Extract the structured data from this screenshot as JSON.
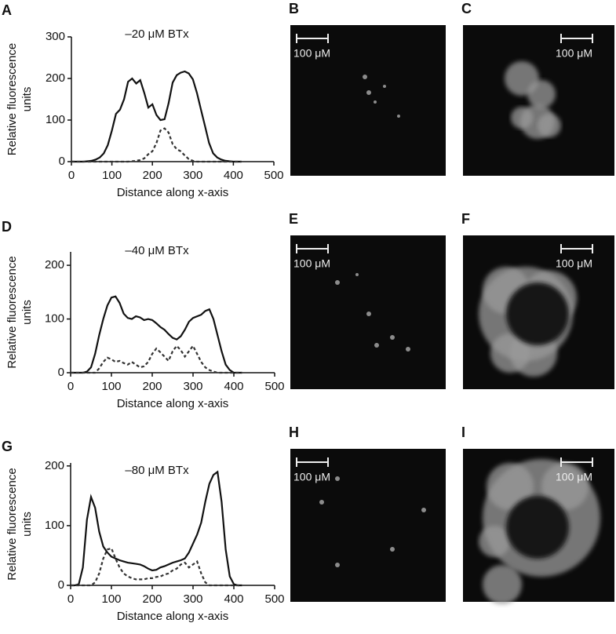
{
  "chart_data": [
    {
      "type": "line",
      "panel": "A",
      "title": "–20 μM BTx",
      "xlabel": "Distance along x-axis",
      "ylabel": [
        "Relative fluorescence",
        "units"
      ],
      "x": [
        0,
        10,
        20,
        30,
        40,
        50,
        60,
        70,
        80,
        90,
        100,
        110,
        120,
        130,
        140,
        150,
        160,
        170,
        180,
        190,
        200,
        210,
        220,
        230,
        240,
        250,
        260,
        270,
        280,
        290,
        300,
        310,
        320,
        330,
        340,
        350,
        360,
        370,
        380,
        390,
        400,
        410,
        420
      ],
      "series": [
        {
          "color": "#111",
          "style": "solid",
          "values": [
            0,
            0,
            0,
            0,
            1,
            2,
            5,
            10,
            20,
            40,
            75,
            115,
            125,
            150,
            192,
            200,
            188,
            196,
            165,
            130,
            138,
            112,
            100,
            102,
            140,
            190,
            208,
            214,
            217,
            212,
            198,
            165,
            125,
            85,
            45,
            20,
            10,
            5,
            2,
            1,
            0,
            0,
            0
          ]
        },
        {
          "color": "#333",
          "style": "dashed",
          "values": [
            0,
            0,
            0,
            0,
            0,
            0,
            0,
            0,
            0,
            0,
            0,
            0,
            0,
            0,
            0,
            1,
            2,
            4,
            8,
            18,
            25,
            45,
            75,
            80,
            70,
            42,
            30,
            25,
            15,
            6,
            2,
            0,
            0,
            0,
            0,
            0,
            0,
            0,
            0,
            0,
            0,
            0,
            0
          ]
        }
      ],
      "xlim": [
        0,
        500
      ],
      "xticks": [
        0,
        100,
        200,
        300,
        400,
        500
      ],
      "ylim": [
        0,
        300
      ],
      "yticks": [
        0,
        100,
        200,
        300
      ]
    },
    {
      "type": "line",
      "panel": "D",
      "title": "–40 μM BTx",
      "xlabel": "Distance along x-axis",
      "ylabel": [
        "Relative fluorescence",
        "units"
      ],
      "x": [
        0,
        10,
        20,
        30,
        40,
        50,
        60,
        70,
        80,
        90,
        100,
        110,
        120,
        130,
        140,
        150,
        160,
        170,
        180,
        190,
        200,
        210,
        220,
        230,
        240,
        250,
        260,
        270,
        280,
        290,
        300,
        310,
        320,
        330,
        340,
        350,
        360,
        370,
        380,
        390,
        400,
        410,
        420
      ],
      "series": [
        {
          "color": "#111",
          "style": "solid",
          "values": [
            0,
            0,
            0,
            0,
            2,
            10,
            35,
            70,
            100,
            125,
            140,
            142,
            130,
            110,
            102,
            100,
            105,
            103,
            98,
            100,
            98,
            92,
            85,
            80,
            72,
            65,
            62,
            68,
            80,
            95,
            102,
            105,
            108,
            115,
            118,
            100,
            70,
            40,
            15,
            5,
            0,
            0,
            0
          ]
        },
        {
          "color": "#333",
          "style": "dashed",
          "values": [
            0,
            0,
            0,
            0,
            0,
            0,
            0,
            8,
            20,
            28,
            25,
            20,
            22,
            18,
            15,
            20,
            15,
            10,
            12,
            20,
            35,
            45,
            38,
            30,
            22,
            40,
            50,
            42,
            30,
            40,
            50,
            35,
            20,
            10,
            5,
            2,
            0,
            0,
            0,
            0,
            0,
            0,
            0
          ]
        }
      ],
      "xlim": [
        0,
        500
      ],
      "xticks": [
        0,
        100,
        200,
        300,
        400,
        500
      ],
      "ylim": [
        0,
        225
      ],
      "yticks": [
        0,
        100,
        200
      ]
    },
    {
      "type": "line",
      "panel": "G",
      "title": "–80 μM BTx",
      "xlabel": "Distance along x-axis",
      "ylabel": [
        "Relative fluorescence",
        "units"
      ],
      "x": [
        0,
        10,
        20,
        30,
        40,
        50,
        60,
        70,
        80,
        90,
        100,
        110,
        120,
        130,
        140,
        150,
        160,
        170,
        180,
        190,
        200,
        210,
        220,
        230,
        240,
        250,
        260,
        270,
        280,
        290,
        300,
        310,
        320,
        330,
        340,
        350,
        360,
        370,
        380,
        390,
        400,
        410,
        420
      ],
      "series": [
        {
          "color": "#111",
          "style": "solid",
          "values": [
            0,
            0,
            2,
            30,
            110,
            148,
            130,
            90,
            65,
            55,
            48,
            45,
            42,
            40,
            38,
            37,
            36,
            35,
            32,
            28,
            25,
            26,
            30,
            32,
            35,
            38,
            40,
            42,
            45,
            55,
            70,
            85,
            105,
            140,
            170,
            185,
            190,
            140,
            60,
            15,
            2,
            0,
            0
          ]
        },
        {
          "color": "#333",
          "style": "dashed",
          "values": [
            0,
            0,
            0,
            0,
            0,
            0,
            5,
            20,
            45,
            60,
            62,
            45,
            30,
            20,
            15,
            12,
            10,
            10,
            10,
            12,
            12,
            14,
            15,
            18,
            20,
            25,
            28,
            35,
            38,
            30,
            35,
            40,
            20,
            5,
            0,
            0,
            0,
            0,
            0,
            0,
            0,
            0,
            0
          ]
        }
      ],
      "xlim": [
        0,
        500
      ],
      "xticks": [
        0,
        100,
        200,
        300,
        400,
        500
      ],
      "ylim": [
        0,
        205
      ],
      "yticks": [
        0,
        100,
        200
      ]
    }
  ],
  "images": [
    {
      "panel": "B",
      "scale": "100 μM"
    },
    {
      "panel": "C",
      "scale": "100 μM"
    },
    {
      "panel": "E",
      "scale": "100 μM"
    },
    {
      "panel": "F",
      "scale": "100 μM"
    },
    {
      "panel": "H",
      "scale": "100 μM"
    },
    {
      "panel": "I",
      "scale": "100 μM"
    }
  ]
}
